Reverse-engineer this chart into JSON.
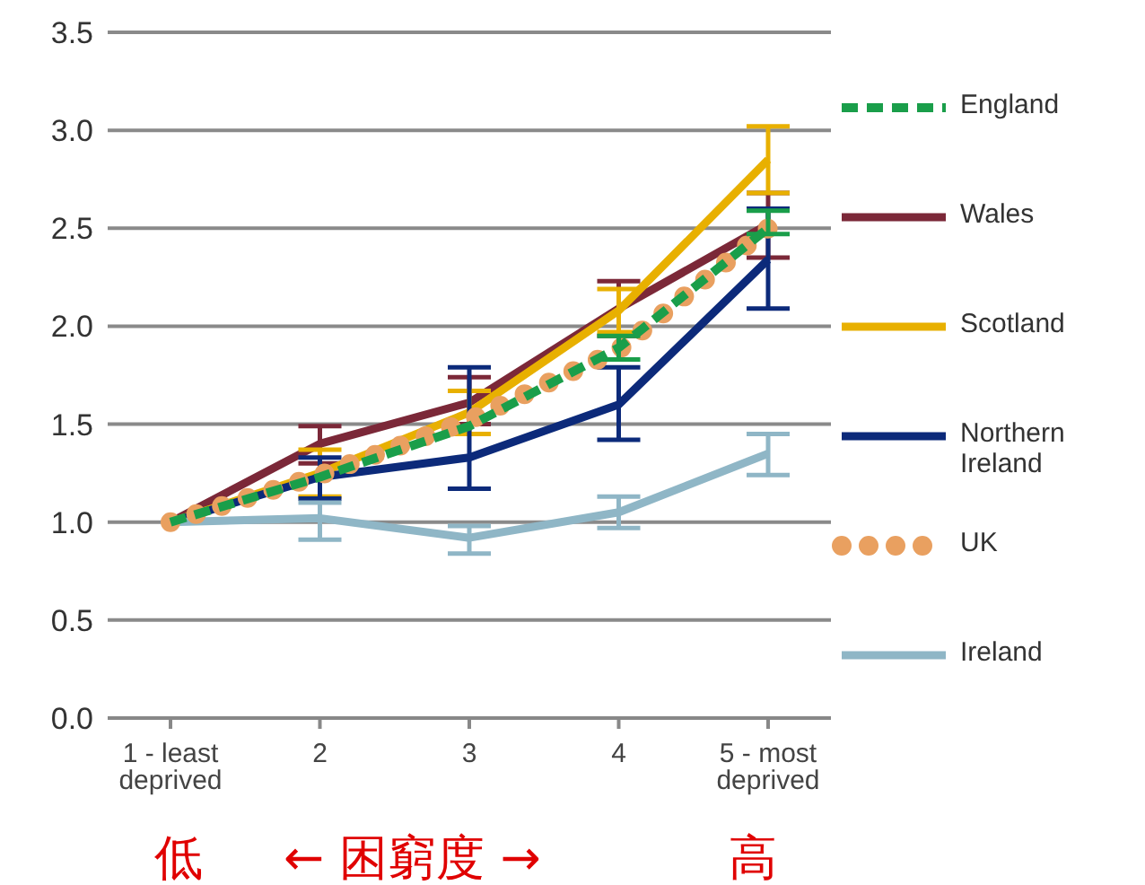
{
  "chart_data": {
    "type": "line",
    "categories": [
      "1 - least deprived",
      "2",
      "3",
      "4",
      "5 - most deprived"
    ],
    "ylim": [
      0,
      3.5
    ],
    "yticks": [
      {
        "value": 0,
        "label": "0.0"
      },
      {
        "value": 0.5,
        "label": "0.5"
      },
      {
        "value": 1,
        "label": "1.0"
      },
      {
        "value": 1.5,
        "label": "1.5"
      },
      {
        "value": 2,
        "label": "2.0"
      },
      {
        "value": 2.5,
        "label": "2.5"
      },
      {
        "value": 3,
        "label": "3.0"
      },
      {
        "value": 3.5,
        "label": "3.5"
      }
    ],
    "grid": "y",
    "legend": "right",
    "marker": "none",
    "series": [
      {
        "name": "England",
        "color": "#1a9e4a",
        "line_style": "dashed",
        "values": [
          1,
          1.23,
          1.49,
          1.89,
          2.5
        ],
        "errors": [
          null,
          null,
          null,
          [
            1.83,
            1.95
          ],
          [
            2.47,
            2.59
          ]
        ]
      },
      {
        "name": "Wales",
        "color": "#7b2838",
        "line_style": "solid",
        "values": [
          1,
          1.4,
          1.61,
          2.09,
          2.52
        ],
        "errors": [
          null,
          [
            1.3,
            1.49
          ],
          [
            1.5,
            1.74
          ],
          [
            1.95,
            2.23
          ],
          [
            2.35,
            2.68
          ]
        ]
      },
      {
        "name": "Scotland",
        "color": "#e8b000",
        "line_style": "solid",
        "values": [
          1,
          1.25,
          1.56,
          2.08,
          2.85
        ],
        "errors": [
          null,
          [
            1.13,
            1.37
          ],
          [
            1.45,
            1.67
          ],
          [
            1.97,
            2.19
          ],
          [
            2.68,
            3.02
          ]
        ]
      },
      {
        "name": "Northern Ireland",
        "color": "#0c2a7a",
        "line_style": "solid",
        "values": [
          1,
          1.23,
          1.33,
          1.6,
          2.34
        ],
        "errors": [
          null,
          [
            1.12,
            1.33
          ],
          [
            1.17,
            1.79
          ],
          [
            1.42,
            1.79
          ],
          [
            2.09,
            2.6
          ]
        ]
      },
      {
        "name": "UK",
        "color": "#e9a060",
        "line_style": "dotted",
        "values": [
          1,
          1.24,
          1.52,
          1.88,
          2.5
        ]
      },
      {
        "name": "Ireland",
        "color": "#8fb6c6",
        "line_style": "solid",
        "values": [
          1,
          1.02,
          0.92,
          1.05,
          1.35
        ],
        "errors": [
          null,
          [
            0.91,
            1.1
          ],
          [
            0.84,
            0.98
          ],
          [
            0.97,
            1.13
          ],
          [
            1.24,
            1.45
          ]
        ]
      }
    ],
    "annotations": [
      "低",
      "← 困窮度 →",
      "高"
    ]
  }
}
